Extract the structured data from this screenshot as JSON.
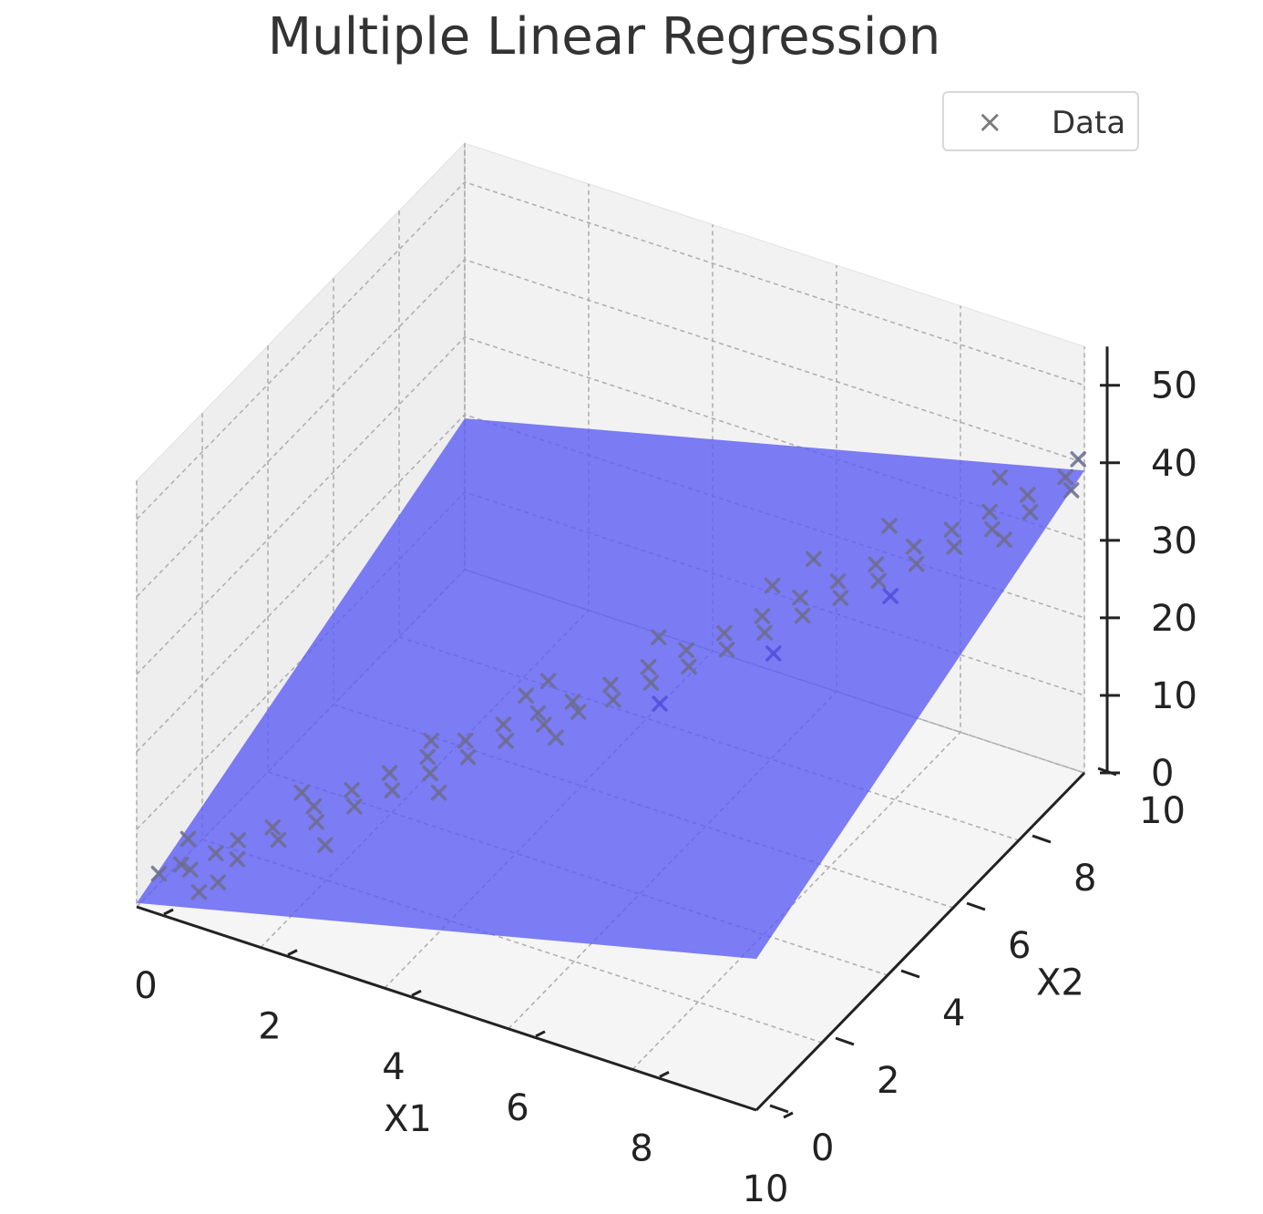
{
  "chart_data": {
    "type": "scatter",
    "subtype": "3d-scatter-with-regression-plane",
    "title": "Multiple Linear Regression",
    "xlabel": "X1",
    "ylabel": "X2",
    "zlabel": "",
    "xlim": [
      0,
      10
    ],
    "ylim": [
      0,
      10
    ],
    "zlim": [
      0,
      55
    ],
    "x_ticks": [
      "0",
      "2",
      "4",
      "6",
      "8",
      "10"
    ],
    "y_ticks": [
      "0",
      "2",
      "4",
      "6",
      "8",
      "10"
    ],
    "z_ticks": [
      "0",
      "10",
      "20",
      "30",
      "40",
      "50"
    ],
    "grid": true,
    "legend": {
      "position": "top-right",
      "entries": [
        "Data"
      ]
    },
    "series": [
      {
        "name": "Data",
        "marker": "x",
        "color": "#7a7a7a",
        "points": [
          [
            0.2,
            0.3,
            3.5
          ],
          [
            0.4,
            0.6,
            3.9
          ],
          [
            0.6,
            0.5,
            4.2
          ],
          [
            0.8,
            0.9,
            5.1
          ],
          [
            1.0,
            1.2,
            6.0
          ],
          [
            1.2,
            0.8,
            5.8
          ],
          [
            1.4,
            1.5,
            7.4
          ],
          [
            1.6,
            1.3,
            7.2
          ],
          [
            1.8,
            2.0,
            9.0
          ],
          [
            2.0,
            1.7,
            8.8
          ],
          [
            2.2,
            2.4,
            10.4
          ],
          [
            2.4,
            2.1,
            10.1
          ],
          [
            2.6,
            2.8,
            11.9
          ],
          [
            2.8,
            2.5,
            11.5
          ],
          [
            3.0,
            3.2,
            13.3
          ],
          [
            3.2,
            2.9,
            13.0
          ],
          [
            3.4,
            3.6,
            14.7
          ],
          [
            3.6,
            3.3,
            14.4
          ],
          [
            3.8,
            4.0,
            16.1
          ],
          [
            4.0,
            3.7,
            15.8
          ],
          [
            4.2,
            4.3,
            17.3
          ],
          [
            4.4,
            4.1,
            17.2
          ],
          [
            4.6,
            4.6,
            18.5
          ],
          [
            4.8,
            4.4,
            18.6
          ],
          [
            5.0,
            5.0,
            20.0
          ],
          [
            5.2,
            4.7,
            19.9
          ],
          [
            5.4,
            5.4,
            21.6
          ],
          [
            5.6,
            5.1,
            21.4
          ],
          [
            5.8,
            5.8,
            23.1
          ],
          [
            6.0,
            5.5,
            22.8
          ],
          [
            6.2,
            6.2,
            24.6
          ],
          [
            6.4,
            5.9,
            24.3
          ],
          [
            6.6,
            6.6,
            26.1
          ],
          [
            6.8,
            6.3,
            25.8
          ],
          [
            7.0,
            7.0,
            27.8
          ],
          [
            7.2,
            6.7,
            27.3
          ],
          [
            7.4,
            7.4,
            29.2
          ],
          [
            7.6,
            7.1,
            28.9
          ],
          [
            7.8,
            7.8,
            30.7
          ],
          [
            8.0,
            7.5,
            30.4
          ],
          [
            8.2,
            8.2,
            32.3
          ],
          [
            8.4,
            7.9,
            31.9
          ],
          [
            8.6,
            8.6,
            33.8
          ],
          [
            8.8,
            8.3,
            33.4
          ],
          [
            9.0,
            9.0,
            35.4
          ],
          [
            9.2,
            8.7,
            35.0
          ],
          [
            9.4,
            9.4,
            36.9
          ],
          [
            9.6,
            9.1,
            36.5
          ],
          [
            9.8,
            9.8,
            38.5
          ],
          [
            10.0,
            9.6,
            38.2
          ],
          [
            0.3,
            1.0,
            5.2
          ],
          [
            0.9,
            0.2,
            3.4
          ],
          [
            1.5,
            2.2,
            9.1
          ],
          [
            2.3,
            1.4,
            7.9
          ],
          [
            2.9,
            3.5,
            13.8
          ],
          [
            3.5,
            2.6,
            12.6
          ],
          [
            4.1,
            4.8,
            19.0
          ],
          [
            4.7,
            3.9,
            17.2
          ],
          [
            5.3,
            5.9,
            23.0
          ],
          [
            5.9,
            4.8,
            20.8
          ],
          [
            6.5,
            7.1,
            27.6
          ],
          [
            7.1,
            6.0,
            25.2
          ],
          [
            7.7,
            8.4,
            32.8
          ],
          [
            8.3,
            7.3,
            30.1
          ],
          [
            8.9,
            9.5,
            37.4
          ],
          [
            9.5,
            8.5,
            35.3
          ],
          [
            9.9,
            10.0,
            40.2
          ],
          [
            1.1,
            0.4,
            4.3
          ],
          [
            6.9,
            7.6,
            29.9
          ],
          [
            3.9,
            4.5,
            17.9
          ]
        ]
      }
    ],
    "plane": {
      "color": "#5a5af5",
      "z_at_x1_0_x2_0": 0.5,
      "z_at_x1_10_x2_0": 19.5,
      "z_at_x1_0_x2_10": 19.5,
      "z_at_x1_10_x2_10": 39.0
    }
  }
}
